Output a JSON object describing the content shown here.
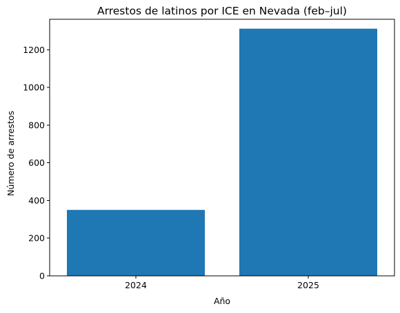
{
  "chart_data": {
    "type": "bar",
    "title": "Arrestos de latinos por ICE en Nevada (feb–jul)",
    "xlabel": "Año",
    "ylabel": "Número de arrestos",
    "categories": [
      "2024",
      "2025"
    ],
    "values": [
      350,
      1312
    ],
    "ylim": [
      0,
      1362
    ],
    "yticks": [
      0,
      200,
      400,
      600,
      800,
      1000,
      1200
    ],
    "bar_color": "#1f77b4",
    "grid": false,
    "legend": "none"
  }
}
